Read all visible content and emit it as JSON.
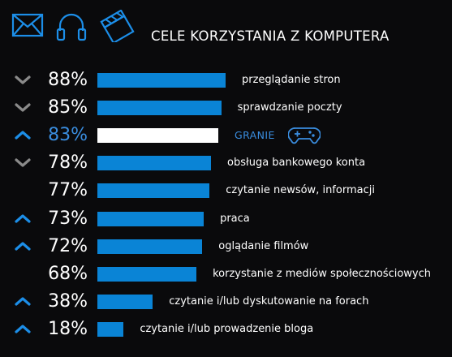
{
  "colors": {
    "bar": "#0a84d6",
    "highlight_bar": "#ffffff",
    "highlight_text": "#3a8ddf",
    "arrow_up": "#1c8ee8",
    "arrow_down": "#8a8a8a",
    "background": "#0a0a0c"
  },
  "header": {
    "icons": [
      "envelope-icon",
      "headphones-icon",
      "clapperboard-icon"
    ]
  },
  "chart_data": {
    "type": "bar",
    "orientation": "horizontal",
    "title": "CELE KORZYSTANIA Z KOMPUTERA",
    "xlim": [
      0,
      100
    ],
    "unit": "%",
    "highlight": "GRANIE",
    "categories": [
      "przeglądanie stron",
      "sprawdzanie poczty",
      "GRANIE",
      "obsługa bankowego konta",
      "czytanie newsów, informacji",
      "praca",
      "oglądanie filmów",
      "korzystanie z mediów społecznościowych",
      "czytanie i/lub dyskutowanie na forach",
      "czytanie i/lub prowadzenie bloga"
    ],
    "values": [
      88,
      85,
      83,
      78,
      77,
      73,
      72,
      68,
      38,
      18
    ],
    "value_labels": [
      "88%",
      "85%",
      "83%",
      "78%",
      "77%",
      "73%",
      "72%",
      "68%",
      "38%",
      "18%"
    ],
    "trend": [
      "down",
      "down",
      "up",
      "down",
      "none",
      "up",
      "up",
      "none",
      "up",
      "up"
    ]
  }
}
